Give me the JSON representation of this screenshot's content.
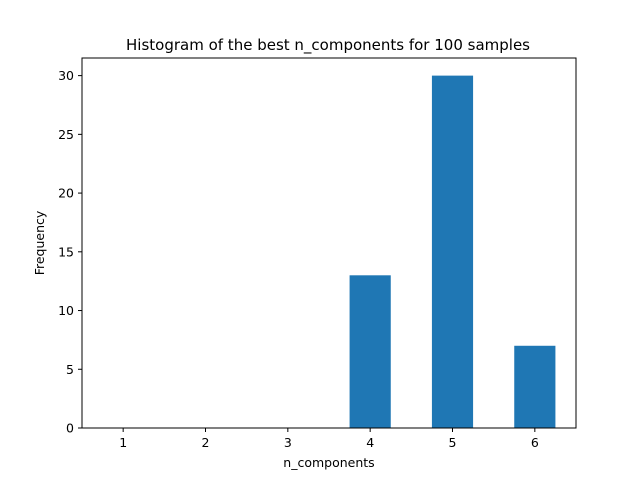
{
  "chart_data": {
    "type": "bar",
    "title": "Histogram of the best n_components for 100 samples",
    "xlabel": "n_components",
    "ylabel": "Frequency",
    "categories": [
      "1",
      "2",
      "3",
      "4",
      "5",
      "6"
    ],
    "x": [
      1,
      2,
      3,
      4,
      5,
      6
    ],
    "values": [
      0,
      0,
      0,
      13,
      30,
      7
    ],
    "bar_width": 0.5,
    "xlim": [
      0.5,
      6.5
    ],
    "ylim": [
      0,
      31.5
    ],
    "yticks": [
      0,
      5,
      10,
      15,
      20,
      25,
      30
    ],
    "grid": false,
    "legend": "none",
    "bar_color": "#1f77b4"
  }
}
